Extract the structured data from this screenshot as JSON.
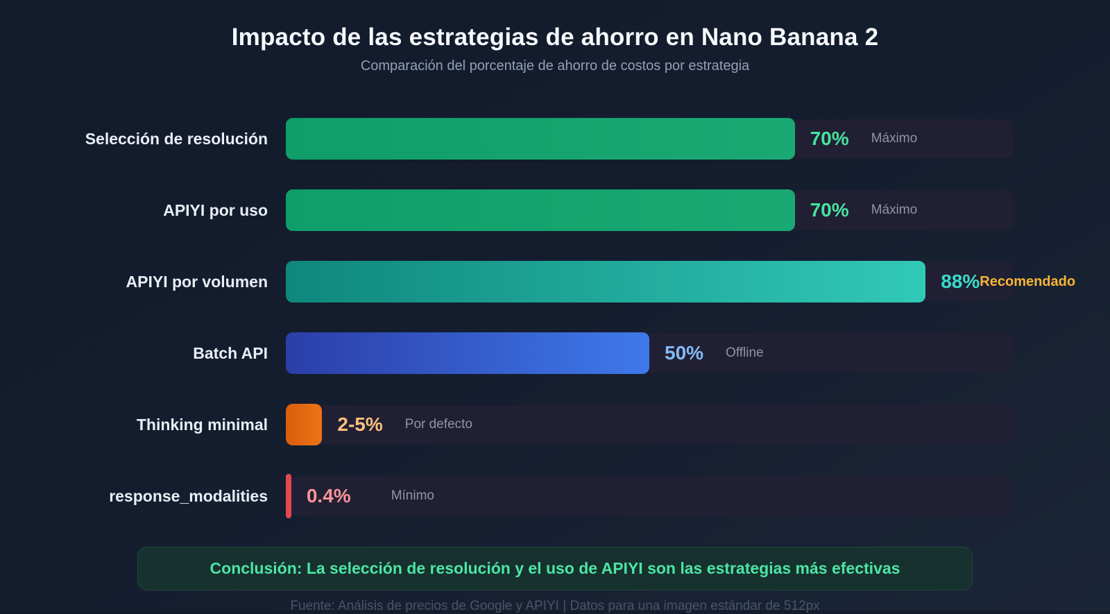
{
  "header": {
    "title": "Impacto de las estrategias de ahorro en Nano Banana 2",
    "subtitle": "Comparación del porcentaje de ahorro de costos por estrategia"
  },
  "chart_data": {
    "type": "bar",
    "orientation": "horizontal",
    "title": "Impacto de las estrategias de ahorro en Nano Banana 2",
    "subtitle": "Comparación del porcentaje de ahorro de costos por estrategia",
    "xlabel": "",
    "ylabel": "",
    "xlim": [
      0,
      100
    ],
    "grid": false,
    "legend": "none",
    "categories": [
      "Selección de resolución",
      "APIYI por uso",
      "APIYI por volumen",
      "Batch API",
      "Thinking minimal",
      "response_modalities"
    ],
    "values": [
      70,
      70,
      88,
      50,
      3.5,
      0.4
    ],
    "value_labels": [
      "70%",
      "70%",
      "88%",
      "50%",
      "2-5%",
      "0.4%"
    ],
    "annotations": [
      "Máximo",
      "Máximo",
      "Recomendado",
      "Offline",
      "Por defecto",
      "Mínimo"
    ],
    "bars": [
      {
        "label": "Selección de resolución",
        "value": 70,
        "value_label": "70%",
        "annotation": "Máximo",
        "render_pct": 70,
        "color_from": "#0f9d69",
        "color_to": "#1aa873",
        "value_color": "#47e29e",
        "annotation_color": "#8d96a9"
      },
      {
        "label": "APIYI por uso",
        "value": 70,
        "value_label": "70%",
        "annotation": "Máximo",
        "render_pct": 70,
        "color_from": "#0f9d69",
        "color_to": "#1aa873",
        "value_color": "#47e29e",
        "annotation_color": "#8d96a9"
      },
      {
        "label": "APIYI por volumen",
        "value": 88,
        "value_label": "88%",
        "annotation": "Recomendado",
        "render_pct": 88,
        "color_from": "#0f877c",
        "color_to": "#31c9b7",
        "value_color": "#38dcc8",
        "annotation_color": "#f8b633"
      },
      {
        "label": "Batch API",
        "value": 50,
        "value_label": "50%",
        "annotation": "Offline",
        "render_pct": 50,
        "color_from": "#2b3ea9",
        "color_to": "#3f79ea",
        "value_color": "#85bbf8",
        "annotation_color": "#8d96a9"
      },
      {
        "label": "Thinking minimal",
        "value": 3.5,
        "value_label": "2-5%",
        "annotation": "Por defecto",
        "render_pct": 5,
        "color_from": "#d85e0d",
        "color_to": "#ed7414",
        "value_color": "#fcc07e",
        "annotation_color": "#8d96a9"
      },
      {
        "label": "response_modalities",
        "value": 0.4,
        "value_label": "0.4%",
        "annotation": "Mínimo",
        "render_pct": 0.75,
        "color_from": "#e2494f",
        "color_to": "#e2494f",
        "value_color": "#f79599",
        "annotation_color": "#8d96a9"
      }
    ]
  },
  "conclusion": {
    "text": "Conclusión: La selección de resolución y el uso de APIYI son las estrategias más efectivas"
  },
  "footer": {
    "text": "Fuente: Análisis de precios de Google y APIYI | Datos para una imagen estándar de 512px"
  },
  "colors": {
    "background_top": "#121a2b",
    "background_bottom": "#1a2537",
    "track": "#211f33",
    "title_text": "#f7fafc",
    "subtitle_text": "#93a0b6",
    "label_text": "#e9eef6",
    "annotation_text": "#8d96a9",
    "recommended_text": "#f8b633",
    "conclusion_text": "#4ce5a6",
    "conclusion_bg": "#16312e",
    "footer_text": "#4a5568"
  }
}
